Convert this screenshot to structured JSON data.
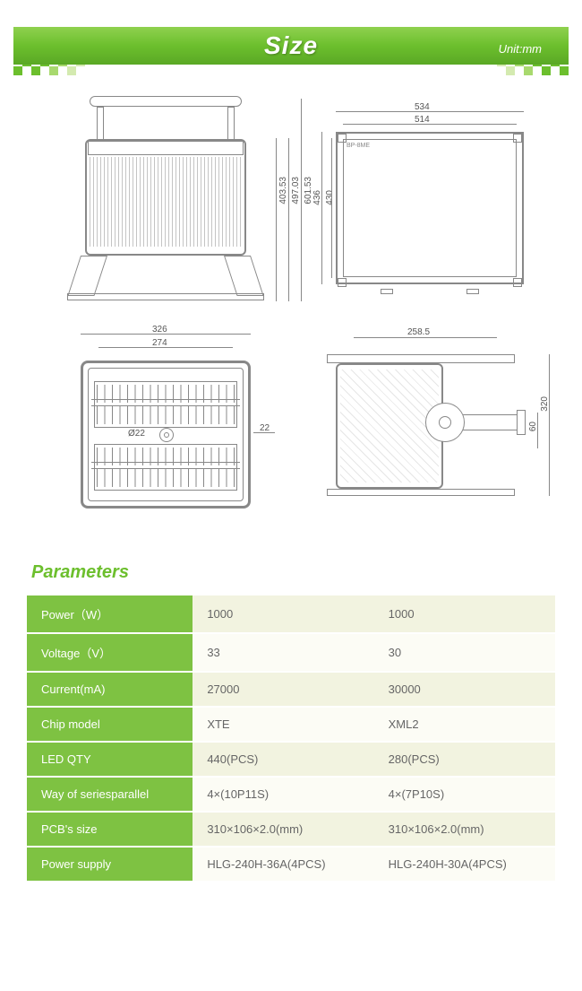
{
  "header": {
    "title": "Size",
    "unit": "Unit:mm"
  },
  "dimensions": {
    "d1": {
      "h1": "403.53",
      "h2": "497.03",
      "h3": "601.53"
    },
    "d2": {
      "w1": "534",
      "w2": "514",
      "h1": "436",
      "h2": "430"
    },
    "d3": {
      "w1": "326",
      "w2": "274",
      "hole": "Ø22",
      "side": "22"
    },
    "d4": {
      "w": "258.5",
      "h1": "320",
      "h2": "60"
    }
  },
  "section_heading": "Parameters",
  "table": {
    "rows": [
      {
        "label": "Power（W）",
        "v1": "1000",
        "v2": "1000"
      },
      {
        "label": "Voltage（V）",
        "v1": "33",
        "v2": "30"
      },
      {
        "label": "Current(mA)",
        "v1": "27000",
        "v2": "30000"
      },
      {
        "label": "Chip model",
        "v1": "XTE",
        "v2": "XML2"
      },
      {
        "label": "LED QTY",
        "v1": "440(PCS)",
        "v2": "280(PCS)"
      },
      {
        "label": "Way of seriesparallel",
        "v1": "4×(10P11S)",
        "v2": "4×(7P10S)"
      },
      {
        "label": "PCB's size",
        "v1": "310×106×2.0(mm)",
        "v2": "310×106×2.0(mm)"
      },
      {
        "label": "Power supply",
        "v1": "HLG-240H-36A(4PCS)",
        "v2": "HLG-240H-30A(4PCS)"
      }
    ]
  },
  "colors": {
    "green_primary": "#6cbf2d",
    "green_light": "#7ec242",
    "cream": "#f2f3e0",
    "cream_light": "#fcfcf5",
    "text_gray": "#666666"
  }
}
